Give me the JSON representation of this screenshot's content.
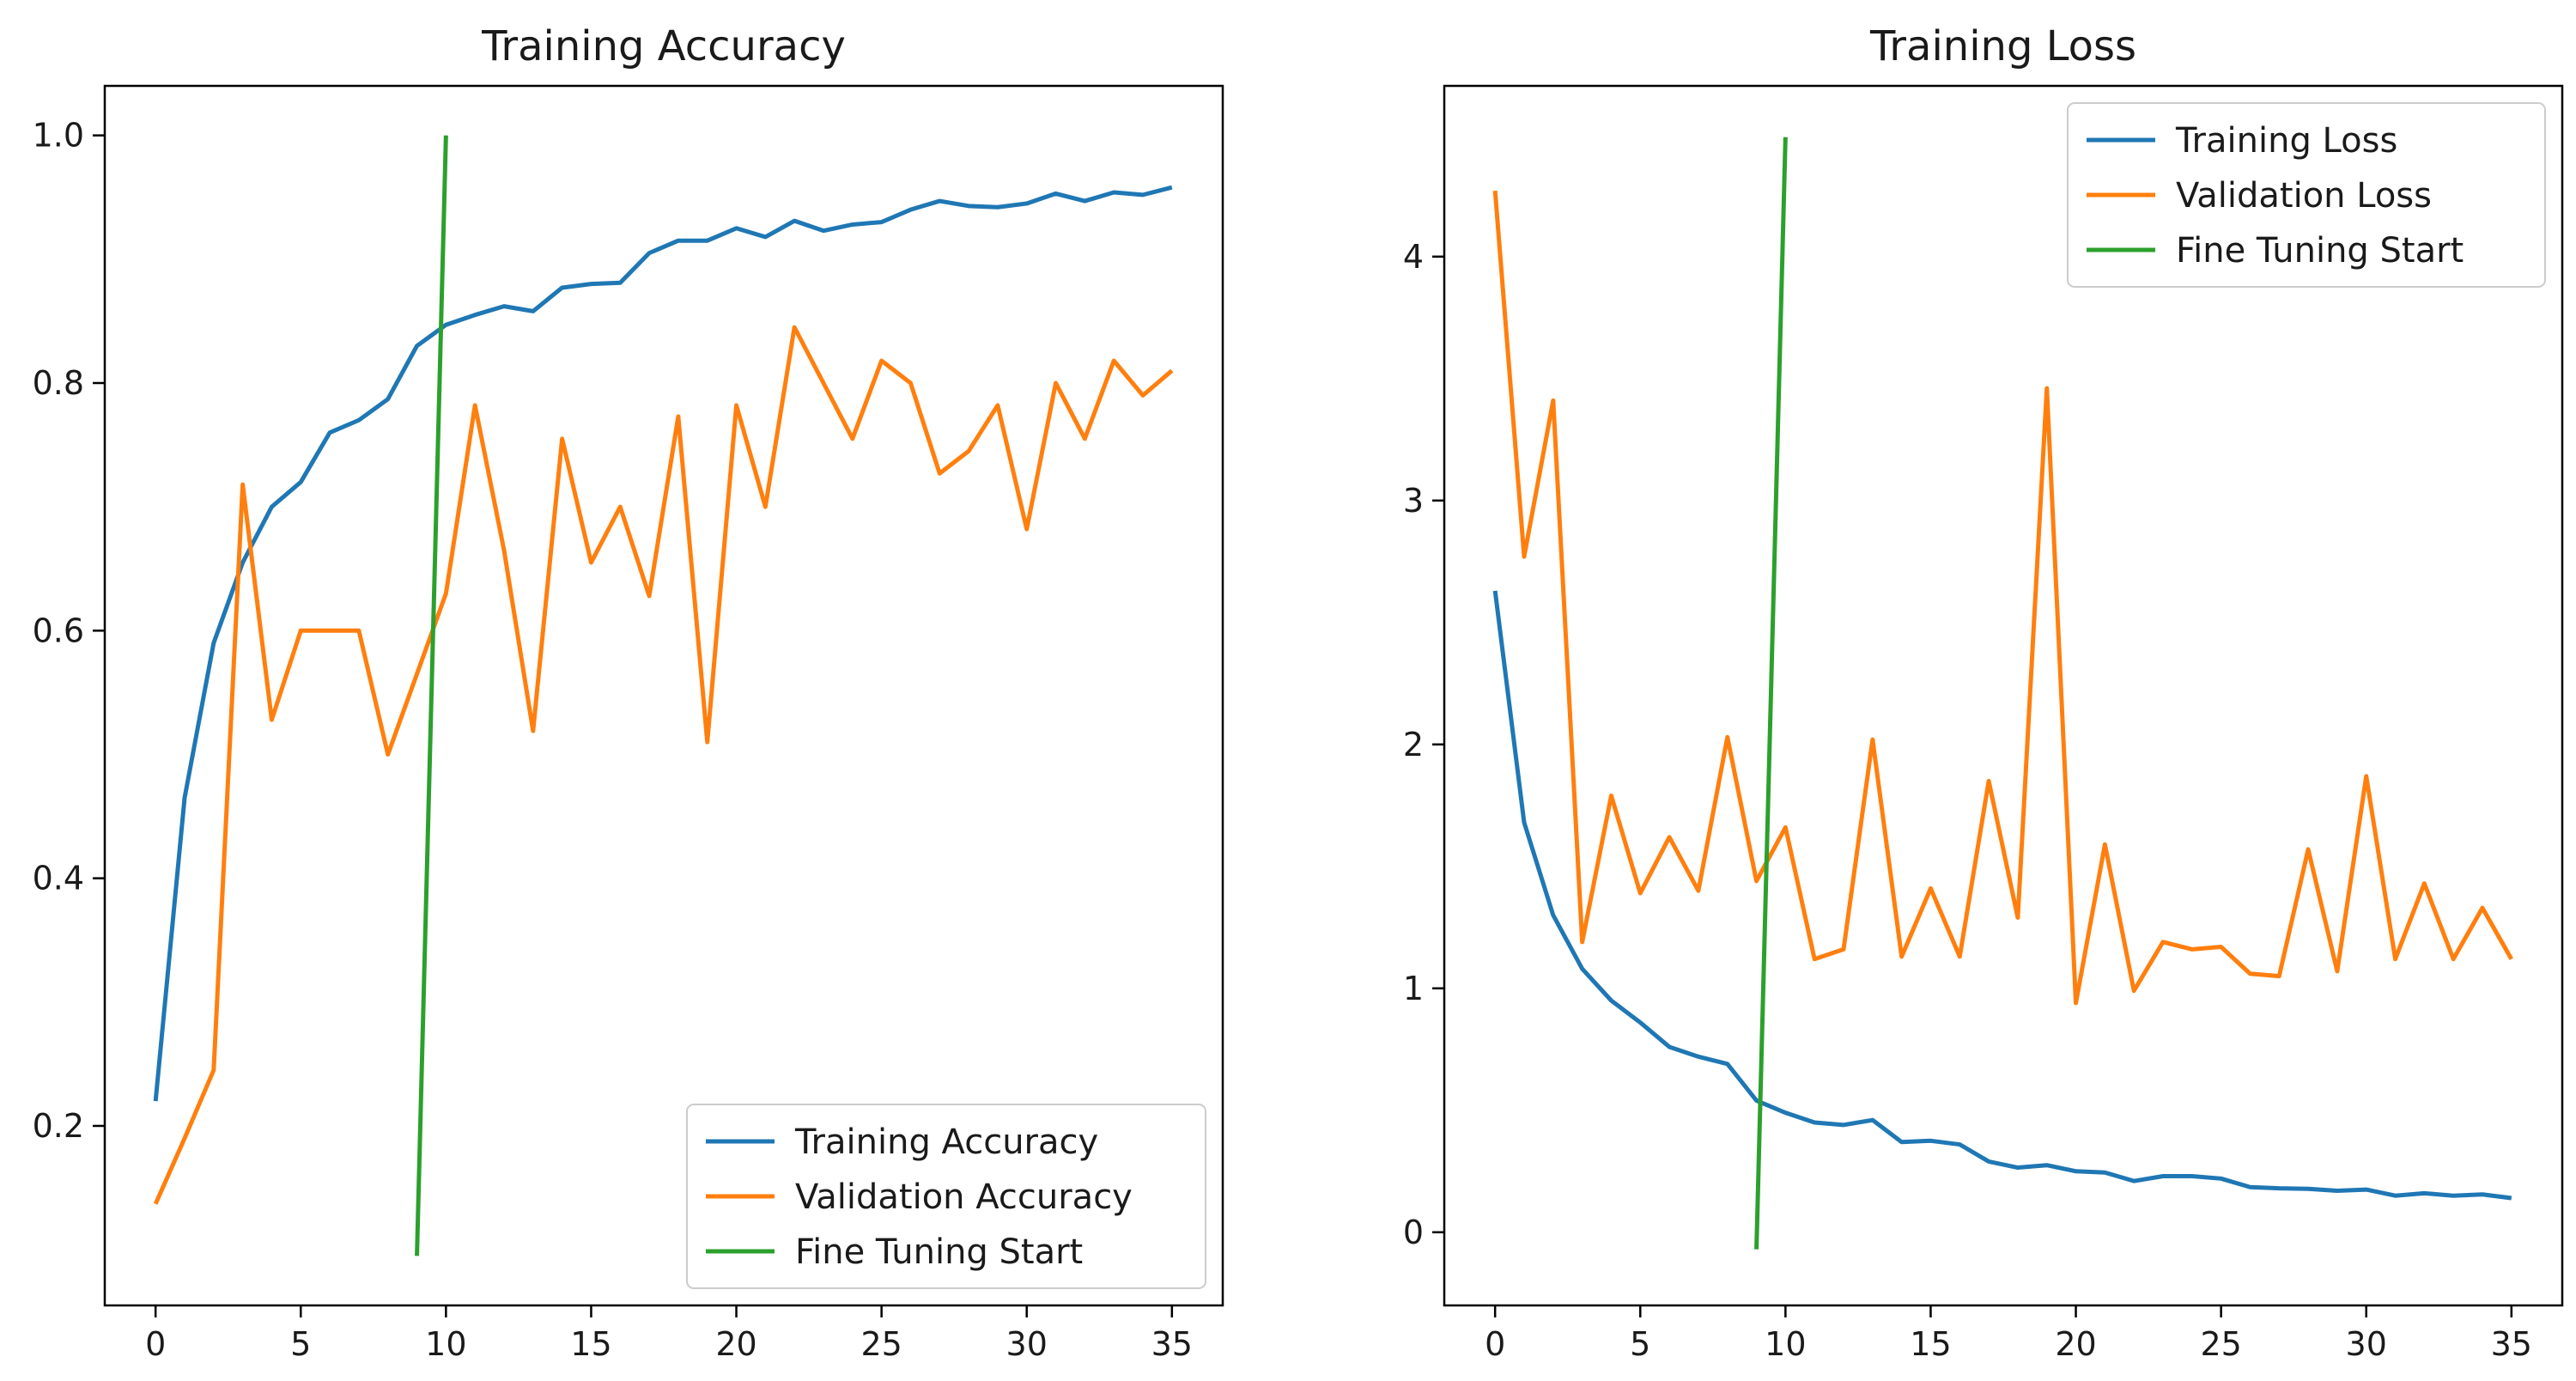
{
  "chart_data": [
    {
      "type": "line",
      "title": "Training Accuracy",
      "xlabel": "",
      "ylabel": "",
      "xlim": [
        -1.75,
        36.75
      ],
      "ylim": [
        0.055,
        1.04
      ],
      "xticks": [
        0,
        5,
        10,
        15,
        20,
        25,
        30,
        35
      ],
      "xtick_labels": [
        "0",
        "5",
        "10",
        "15",
        "20",
        "25",
        "30",
        "35"
      ],
      "yticks": [
        0.2,
        0.4,
        0.6,
        0.8,
        1.0
      ],
      "ytick_labels": [
        "0.2",
        "0.4",
        "0.6",
        "0.8",
        "1.0"
      ],
      "grid": false,
      "legend_position": "lower-right",
      "series": [
        {
          "name": "Training Accuracy",
          "color": "#1f77b4",
          "x": [
            0,
            1,
            2,
            3,
            4,
            5,
            6,
            7,
            8,
            9,
            10,
            11,
            12,
            13,
            14,
            15,
            16,
            17,
            18,
            19,
            20,
            21,
            22,
            23,
            24,
            25,
            26,
            27,
            28,
            29,
            30,
            31,
            32,
            33,
            34,
            35
          ],
          "y": [
            0.22,
            0.465,
            0.59,
            0.655,
            0.7,
            0.72,
            0.76,
            0.77,
            0.787,
            0.83,
            0.847,
            0.855,
            0.862,
            0.858,
            0.877,
            0.88,
            0.881,
            0.905,
            0.915,
            0.915,
            0.925,
            0.918,
            0.931,
            0.923,
            0.928,
            0.93,
            0.94,
            0.947,
            0.943,
            0.942,
            0.945,
            0.953,
            0.947,
            0.954,
            0.952,
            0.958
          ]
        },
        {
          "name": "Validation Accuracy",
          "color": "#ff7f0e",
          "x": [
            0,
            1,
            2,
            3,
            4,
            5,
            6,
            7,
            8,
            9,
            10,
            11,
            12,
            13,
            14,
            15,
            16,
            17,
            18,
            19,
            20,
            21,
            22,
            23,
            24,
            25,
            26,
            27,
            28,
            29,
            30,
            31,
            32,
            33,
            34,
            35
          ],
          "y": [
            0.137,
            0.19,
            0.245,
            0.718,
            0.528,
            0.6,
            0.6,
            0.6,
            0.5,
            0.565,
            0.63,
            0.782,
            0.665,
            0.519,
            0.755,
            0.655,
            0.7,
            0.628,
            0.773,
            0.51,
            0.782,
            0.7,
            0.845,
            0.8,
            0.755,
            0.818,
            0.8,
            0.727,
            0.745,
            0.782,
            0.682,
            0.8,
            0.755,
            0.818,
            0.79,
            0.81
          ]
        },
        {
          "name": "Fine Tuning Start",
          "color": "#2ca02c",
          "x": [
            9,
            10
          ],
          "y": [
            0.095,
            1.0
          ]
        }
      ]
    },
    {
      "type": "line",
      "title": "Training Loss",
      "xlabel": "",
      "ylabel": "",
      "xlim": [
        -1.75,
        36.75
      ],
      "ylim": [
        -0.3,
        4.7
      ],
      "xticks": [
        0,
        5,
        10,
        15,
        20,
        25,
        30,
        35
      ],
      "xtick_labels": [
        "0",
        "5",
        "10",
        "15",
        "20",
        "25",
        "30",
        "35"
      ],
      "yticks": [
        0,
        1,
        2,
        3,
        4
      ],
      "ytick_labels": [
        "0",
        "1",
        "2",
        "3",
        "4"
      ],
      "grid": false,
      "legend_position": "upper-right",
      "series": [
        {
          "name": "Training Loss",
          "color": "#1f77b4",
          "x": [
            0,
            1,
            2,
            3,
            4,
            5,
            6,
            7,
            8,
            9,
            10,
            11,
            12,
            13,
            14,
            15,
            16,
            17,
            18,
            19,
            20,
            21,
            22,
            23,
            24,
            25,
            26,
            27,
            28,
            29,
            30,
            31,
            32,
            33,
            34,
            35
          ],
          "y": [
            2.63,
            1.68,
            1.3,
            1.08,
            0.95,
            0.86,
            0.76,
            0.72,
            0.69,
            0.54,
            0.49,
            0.45,
            0.44,
            0.46,
            0.37,
            0.375,
            0.36,
            0.29,
            0.265,
            0.275,
            0.25,
            0.245,
            0.21,
            0.23,
            0.23,
            0.22,
            0.185,
            0.18,
            0.178,
            0.17,
            0.175,
            0.15,
            0.16,
            0.15,
            0.155,
            0.14
          ]
        },
        {
          "name": "Validation Loss",
          "color": "#ff7f0e",
          "x": [
            0,
            1,
            2,
            3,
            4,
            5,
            6,
            7,
            8,
            9,
            10,
            11,
            12,
            13,
            14,
            15,
            16,
            17,
            18,
            19,
            20,
            21,
            22,
            23,
            24,
            25,
            26,
            27,
            28,
            29,
            30,
            31,
            32,
            33,
            34,
            35
          ],
          "y": [
            4.27,
            2.77,
            3.41,
            1.19,
            1.79,
            1.39,
            1.62,
            1.4,
            2.03,
            1.44,
            1.66,
            1.12,
            1.16,
            2.02,
            1.13,
            1.41,
            1.13,
            1.85,
            1.29,
            3.46,
            0.94,
            1.59,
            0.99,
            1.19,
            1.16,
            1.17,
            1.06,
            1.05,
            1.57,
            1.07,
            1.87,
            1.12,
            1.43,
            1.12,
            1.33,
            1.12
          ]
        },
        {
          "name": "Fine Tuning Start",
          "color": "#2ca02c",
          "x": [
            9,
            10
          ],
          "y": [
            -0.07,
            4.49
          ]
        }
      ]
    }
  ]
}
